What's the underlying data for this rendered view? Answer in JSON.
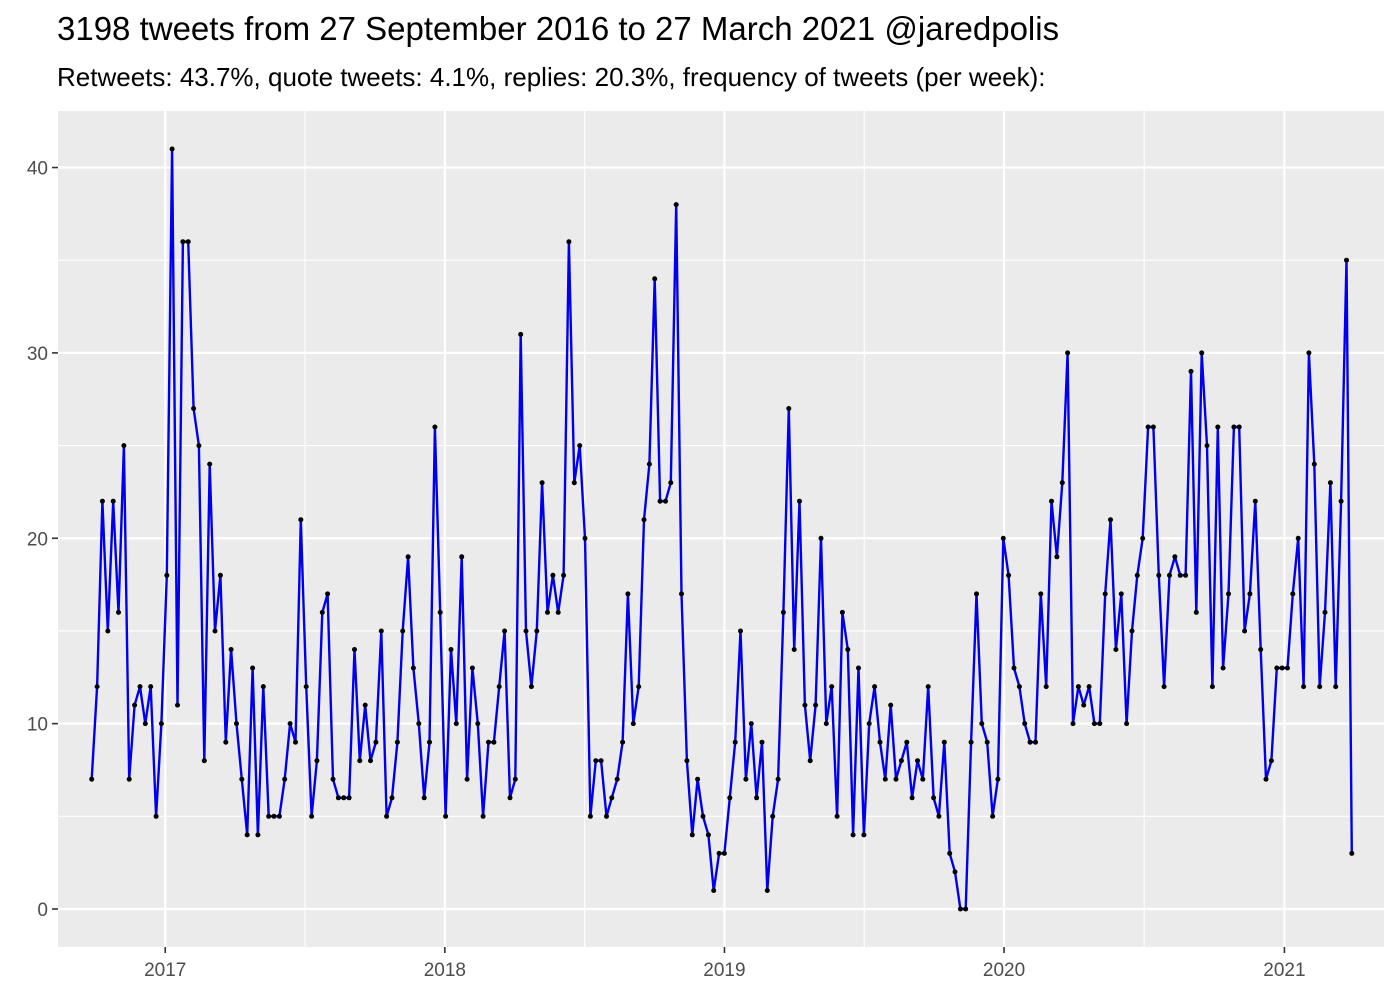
{
  "chart_data": {
    "type": "line",
    "title": "3198 tweets from 27 September 2016 to 27 March 2021 @jaredpolis",
    "subtitle": "Retweets: 43.7%, quote tweets: 4.1%, replies: 20.3%, frequency of tweets (per week):",
    "xlabel": "",
    "ylabel": "",
    "x_range": [
      "2016-08-14",
      "2021-05-11"
    ],
    "ylim": [
      -2.05,
      43.05
    ],
    "y_ticks": [
      0,
      10,
      20,
      30,
      40
    ],
    "x_ticks": [
      {
        "date": "2017-01-01",
        "label": "2017"
      },
      {
        "date": "2018-01-01",
        "label": "2018"
      },
      {
        "date": "2019-01-01",
        "label": "2019"
      },
      {
        "date": "2020-01-01",
        "label": "2020"
      },
      {
        "date": "2021-01-01",
        "label": "2021"
      }
    ],
    "grid": true,
    "legend": "none",
    "colors": {
      "line": "#0000ee",
      "point": "#000000",
      "panel": "#ebebeb",
      "grid": "#ffffff"
    },
    "series": [
      {
        "start_date": "2016-09-27",
        "step_days": 7,
        "values": [
          7,
          12,
          22,
          15,
          22,
          16,
          25,
          7,
          11,
          12,
          10,
          12,
          5,
          10,
          18,
          41,
          11,
          36,
          36,
          27,
          25,
          8,
          24,
          15,
          18,
          9,
          14,
          10,
          7,
          4,
          13,
          4,
          12,
          5,
          5,
          5,
          7,
          10,
          9,
          21,
          12,
          5,
          8,
          16,
          17,
          7,
          6,
          6,
          6,
          14,
          8,
          11,
          8,
          9,
          15,
          5,
          6,
          9,
          15,
          19,
          13,
          10,
          6,
          9,
          26,
          16,
          5,
          14,
          10,
          19,
          7,
          13,
          10,
          5,
          9,
          9,
          12,
          15,
          6,
          7,
          31,
          15,
          12,
          15,
          23,
          16,
          18,
          16,
          18,
          36,
          23,
          25,
          20,
          5,
          8,
          8,
          5,
          6,
          7,
          9,
          17,
          10,
          12,
          21,
          24,
          34,
          22,
          22,
          23,
          38,
          17,
          8,
          4,
          7,
          5,
          4,
          1,
          3,
          3,
          6,
          9,
          15,
          7,
          10,
          6,
          9,
          1,
          5,
          7,
          16,
          27,
          14,
          22,
          11,
          8,
          11,
          20,
          10,
          12,
          5,
          16,
          14,
          4,
          13,
          4,
          10,
          12,
          9,
          7,
          11,
          7,
          8,
          9,
          6,
          8,
          7,
          12,
          6,
          5,
          9,
          3,
          2,
          0,
          0,
          9,
          17,
          10,
          9,
          5,
          7,
          20,
          18,
          13,
          12,
          10,
          9,
          9,
          17,
          12,
          22,
          19,
          23,
          30,
          10,
          12,
          11,
          12,
          10,
          10,
          17,
          21,
          14,
          17,
          10,
          15,
          18,
          20,
          26,
          26,
          18,
          12,
          18,
          19,
          18,
          18,
          29,
          16,
          30,
          25,
          12,
          26,
          13,
          17,
          26,
          26,
          15,
          17,
          22,
          14,
          7,
          8,
          13,
          13,
          13,
          17,
          20,
          12,
          30,
          24,
          12,
          16,
          23,
          12,
          22,
          35,
          3
        ]
      }
    ]
  }
}
